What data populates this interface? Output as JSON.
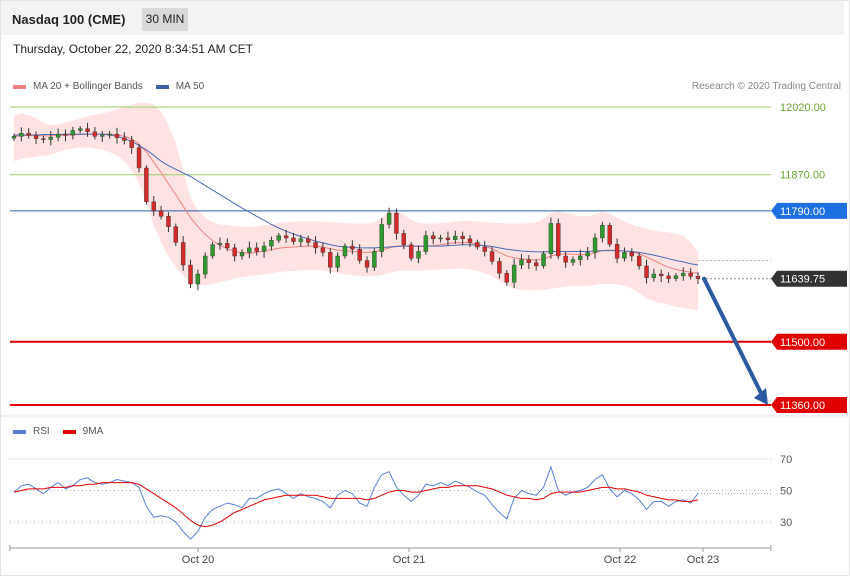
{
  "header": {
    "title": "Nasdaq 100 (CME)",
    "timeframe": "30 MIN",
    "datetime": "Thursday, October 22, 2020 8:34:51 AM CET"
  },
  "legend": {
    "main": [
      {
        "label": "MA 20 + Bollinger Bands",
        "color": "#f08080"
      },
      {
        "label": "MA 50",
        "color": "#3f5fa8"
      }
    ],
    "rsi": [
      {
        "label": "RSI",
        "color": "#5b7fd6"
      },
      {
        "label": "9MA",
        "color": "#e00000"
      }
    ]
  },
  "credit": "Research © 2020 Trading Central",
  "chart_data": [
    {
      "type": "candlestick",
      "title": "Nasdaq 100 (CME)",
      "timeframe": "30 MIN",
      "ylim": [
        11350,
        12070
      ],
      "x_ticks": [
        "Oct 20",
        "Oct 21",
        "Oct 22",
        "Oct 23"
      ],
      "levels": [
        {
          "value": 12020.0,
          "label": "12020.00",
          "style": "target",
          "color": "#7cb342"
        },
        {
          "value": 11870.0,
          "label": "11870.00",
          "style": "target",
          "color": "#7cb342"
        },
        {
          "value": 11790.0,
          "label": "11790.00",
          "style": "pivot",
          "color": "#1e6fe0"
        },
        {
          "value": 11639.75,
          "label": "11639.75",
          "style": "last",
          "color": "#333333"
        },
        {
          "value": 11500.0,
          "label": "11500.00",
          "style": "support",
          "color": "#e00000"
        },
        {
          "value": 11360.0,
          "label": "11360.00",
          "style": "support",
          "color": "#e00000"
        }
      ],
      "close_series": [
        11955,
        11962,
        11957,
        11950,
        11948,
        11953,
        11960,
        11958,
        11968,
        11972,
        11965,
        11955,
        11958,
        11960,
        11952,
        11946,
        11930,
        11885,
        11810,
        11790,
        11778,
        11755,
        11720,
        11670,
        11628,
        11650,
        11690,
        11715,
        11718,
        11708,
        11690,
        11698,
        11708,
        11700,
        11712,
        11725,
        11735,
        11730,
        11722,
        11728,
        11720,
        11708,
        11698,
        11665,
        11690,
        11712,
        11705,
        11680,
        11665,
        11700,
        11760,
        11785,
        11740,
        11715,
        11685,
        11700,
        11735,
        11728,
        11730,
        11726,
        11734,
        11728,
        11720,
        11710,
        11700,
        11678,
        11652,
        11632,
        11670,
        11682,
        11675,
        11668,
        11695,
        11762,
        11690,
        11676,
        11682,
        11690,
        11698,
        11730,
        11758,
        11716,
        11685,
        11698,
        11690,
        11668,
        11642,
        11650,
        11646,
        11640,
        11646,
        11652,
        11645,
        11640
      ],
      "ma20": [
        11955,
        11956,
        11957,
        11957,
        11956,
        11956,
        11957,
        11957,
        11958,
        11959,
        11960,
        11960,
        11960,
        11960,
        11958,
        11955,
        11950,
        11938,
        11920,
        11898,
        11875,
        11850,
        11826,
        11800,
        11775,
        11755,
        11738,
        11724,
        11714,
        11706,
        11700,
        11697,
        11696,
        11698,
        11701,
        11704,
        11707,
        11709,
        11710,
        11711,
        11712,
        11712,
        11710,
        11706,
        11703,
        11702,
        11700,
        11699,
        11698,
        11699,
        11703,
        11708,
        11712,
        11713,
        11712,
        11711,
        11712,
        11713,
        11715,
        11717,
        11719,
        11720,
        11719,
        11716,
        11712,
        11706,
        11698,
        11690,
        11686,
        11684,
        11682,
        11681,
        11683,
        11690,
        11694,
        11695,
        11694,
        11693,
        11693,
        11697,
        11702,
        11703,
        11702,
        11701,
        11699,
        11695,
        11688,
        11680,
        11672,
        11665,
        11660,
        11657,
        11654,
        11652
      ],
      "ma50": [
        11958,
        11958,
        11958,
        11958,
        11959,
        11959,
        11959,
        11960,
        11960,
        11960,
        11960,
        11960,
        11960,
        11958,
        11955,
        11950,
        11944,
        11935,
        11925,
        11913,
        11900,
        11890,
        11882,
        11874,
        11866,
        11856,
        11846,
        11836,
        11826,
        11816,
        11806,
        11796,
        11787,
        11778,
        11769,
        11760,
        11752,
        11745,
        11739,
        11733,
        11728,
        11723,
        11719,
        11715,
        11712,
        11710,
        11709,
        11708,
        11708,
        11708,
        11709,
        11710,
        11711,
        11712,
        11712,
        11712,
        11712,
        11712,
        11712,
        11713,
        11714,
        11715,
        11715,
        11714,
        11713,
        11711,
        11708,
        11705,
        11703,
        11701,
        11700,
        11699,
        11699,
        11700,
        11700,
        11700,
        11700,
        11700,
        11700,
        11701,
        11702,
        11702,
        11702,
        11701,
        11700,
        11698,
        11695,
        11692,
        11688,
        11684,
        11680,
        11677,
        11673,
        11670
      ],
      "bollinger": {
        "upper": [
          12000,
          12005,
          12002,
          11995,
          11985,
          11980,
          11982,
          11986,
          11990,
          11995,
          12000,
          12003,
          12005,
          12010,
          12015,
          12020,
          12025,
          12030,
          12030,
          12025,
          12010,
          11980,
          11940,
          11880,
          11820,
          11790,
          11775,
          11765,
          11760,
          11758,
          11756,
          11755,
          11755,
          11756,
          11758,
          11760,
          11763,
          11765,
          11766,
          11767,
          11767,
          11767,
          11766,
          11765,
          11764,
          11763,
          11762,
          11762,
          11762,
          11765,
          11775,
          11790,
          11790,
          11782,
          11770,
          11764,
          11762,
          11762,
          11763,
          11764,
          11766,
          11768,
          11768,
          11767,
          11765,
          11764,
          11763,
          11762,
          11762,
          11762,
          11763,
          11765,
          11772,
          11785,
          11788,
          11786,
          11782,
          11778,
          11778,
          11782,
          11788,
          11784,
          11775,
          11766,
          11760,
          11755,
          11750,
          11746,
          11744,
          11742,
          11740,
          11735,
          11720,
          11700
        ],
        "lower": [
          11900,
          11905,
          11908,
          11910,
          11912,
          11915,
          11920,
          11925,
          11928,
          11930,
          11930,
          11928,
          11925,
          11920,
          11912,
          11900,
          11880,
          11850,
          11810,
          11760,
          11720,
          11690,
          11665,
          11645,
          11630,
          11625,
          11626,
          11628,
          11632,
          11636,
          11640,
          11643,
          11646,
          11648,
          11650,
          11652,
          11654,
          11656,
          11657,
          11658,
          11659,
          11659,
          11658,
          11655,
          11652,
          11650,
          11648,
          11646,
          11645,
          11645,
          11648,
          11652,
          11656,
          11658,
          11658,
          11657,
          11658,
          11659,
          11660,
          11661,
          11662,
          11662,
          11660,
          11657,
          11652,
          11645,
          11635,
          11624,
          11618,
          11615,
          11614,
          11614,
          11615,
          11617,
          11620,
          11622,
          11623,
          11623,
          11624,
          11626,
          11628,
          11628,
          11627,
          11624,
          11618,
          11608,
          11596,
          11590,
          11586,
          11582,
          11578,
          11575,
          11572,
          11570
        ]
      }
    },
    {
      "type": "line",
      "title": "RSI",
      "ylim": [
        20,
        80
      ],
      "y_ticks": [
        70,
        50,
        30
      ],
      "series": [
        {
          "name": "RSI",
          "values": [
            49,
            53,
            54,
            51,
            48,
            52,
            55,
            51,
            53,
            57,
            58,
            55,
            54,
            55,
            57,
            56,
            55,
            52,
            40,
            33,
            34,
            33,
            30,
            24,
            19,
            24,
            33,
            38,
            40,
            42,
            41,
            39,
            45,
            45,
            48,
            50,
            51,
            48,
            45,
            48,
            46,
            45,
            43,
            39,
            47,
            50,
            48,
            42,
            40,
            52,
            60,
            62,
            52,
            47,
            43,
            47,
            54,
            53,
            55,
            53,
            56,
            54,
            52,
            49,
            47,
            41,
            36,
            32,
            45,
            50,
            48,
            47,
            52,
            65,
            50,
            47,
            49,
            50,
            52,
            57,
            60,
            51,
            46,
            50,
            48,
            44,
            38,
            43,
            43,
            40,
            43,
            44,
            42,
            48
          ]
        },
        {
          "name": "9MA",
          "values": [
            49,
            50,
            51,
            51,
            51,
            52,
            52,
            52,
            53,
            53,
            54,
            54,
            55,
            55,
            55,
            55,
            55,
            54,
            51,
            48,
            45,
            42,
            39,
            35,
            31,
            28,
            27,
            28,
            30,
            33,
            36,
            38,
            40,
            42,
            44,
            45,
            46,
            47,
            47,
            47,
            47,
            47,
            46,
            45,
            45,
            45,
            45,
            45,
            44,
            45,
            47,
            49,
            50,
            50,
            49,
            49,
            50,
            51,
            52,
            52,
            53,
            53,
            53,
            53,
            52,
            51,
            49,
            47,
            46,
            45,
            45,
            44,
            45,
            48,
            49,
            49,
            49,
            49,
            50,
            51,
            52,
            52,
            51,
            51,
            50,
            49,
            47,
            46,
            45,
            44,
            44,
            43,
            43,
            44
          ]
        }
      ],
      "x_ticks": [
        "Oct 20",
        "Oct 21",
        "Oct 22",
        "Oct 23"
      ]
    }
  ]
}
